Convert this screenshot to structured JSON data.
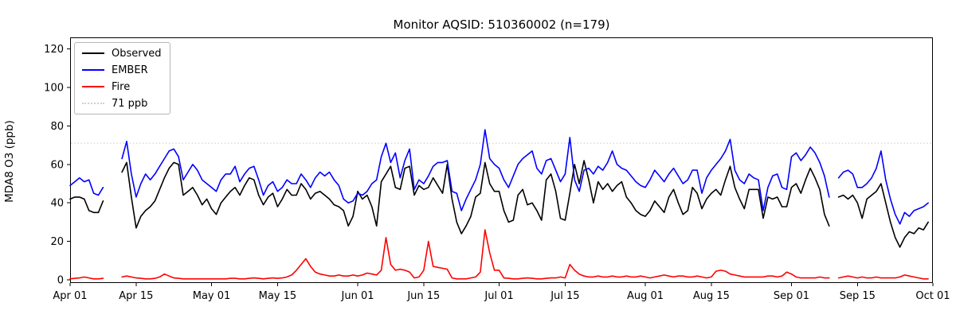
{
  "figure": {
    "title": "Monitor AQSID: 510360002 (n=179)",
    "ylabel": "MDA8 O3 (ppb)"
  },
  "legend": {
    "position": "upper-left",
    "items": [
      {
        "label": "Observed",
        "color": "#000000",
        "style": "solid"
      },
      {
        "label": "EMBER",
        "color": "#0000ff",
        "style": "solid"
      },
      {
        "label": "Fire",
        "color": "#ff0000",
        "style": "solid"
      },
      {
        "label": "71 ppb",
        "color": "#d0d0d0",
        "style": "dotted"
      }
    ]
  },
  "chart_data": {
    "type": "line",
    "title": "Monitor AQSID: 510360002 (n=179)",
    "xlabel": "",
    "ylabel": "MDA8 O3 (ppb)",
    "n_points": 179,
    "grid": false,
    "legend_position": "upper-left",
    "ylim": [
      -2,
      126
    ],
    "yticks": [
      0,
      20,
      40,
      60,
      80,
      100,
      120
    ],
    "xtick_labels": [
      "Apr 01",
      "Apr 15",
      "May 01",
      "May 15",
      "Jun 01",
      "Jun 15",
      "Jul 01",
      "Jul 15",
      "Aug 01",
      "Aug 15",
      "Sep 01",
      "Sep 15",
      "Oct 01"
    ],
    "xtick_day_offsets": [
      0,
      14,
      30,
      44,
      61,
      75,
      91,
      105,
      122,
      136,
      153,
      167,
      183
    ],
    "x_unit": "daily values, day 0 = Apr 01, day 182 = Sep 30",
    "n_days": 183,
    "missing_dates": [
      "Apr 09",
      "Apr 10",
      "Apr 11",
      "Sep 10"
    ],
    "reference_line": {
      "label": "71 ppb",
      "value": 71,
      "color": "#d0d0d0",
      "style": "dotted"
    },
    "series": [
      {
        "name": "Observed",
        "color": "#000000",
        "values": [
          42,
          43,
          43,
          42,
          36,
          35,
          35,
          41,
          null,
          null,
          null,
          56,
          61,
          43,
          27,
          33,
          36,
          38,
          41,
          47,
          53,
          58,
          61,
          60,
          44,
          46,
          48,
          44,
          39,
          42,
          37,
          34,
          40,
          43,
          46,
          48,
          44,
          49,
          53,
          52,
          44,
          39,
          43,
          45,
          38,
          42,
          47,
          44,
          44,
          50,
          47,
          42,
          45,
          46,
          44,
          42,
          39,
          38,
          36,
          28,
          33,
          46,
          42,
          44,
          38,
          28,
          51,
          55,
          59,
          48,
          47,
          58,
          59,
          44,
          49,
          47,
          48,
          53,
          49,
          45,
          60,
          42,
          30,
          24,
          28,
          33,
          43,
          45,
          61,
          50,
          46,
          46,
          36,
          30,
          31,
          44,
          47,
          39,
          40,
          36,
          31,
          52,
          55,
          46,
          32,
          31,
          45,
          60,
          50,
          62,
          52,
          40,
          51,
          47,
          50,
          46,
          49,
          51,
          43,
          40,
          36,
          34,
          33,
          36,
          41,
          38,
          35,
          43,
          47,
          40,
          34,
          36,
          48,
          45,
          37,
          42,
          45,
          47,
          44,
          52,
          59,
          48,
          42,
          37,
          47,
          47,
          47,
          32,
          43,
          42,
          43,
          38,
          38,
          48,
          50,
          45,
          52,
          58,
          53,
          47,
          34,
          28,
          null,
          43,
          44,
          42,
          44,
          40,
          32,
          42,
          44,
          46,
          50,
          40,
          30,
          22,
          17,
          22,
          25,
          24,
          27,
          26,
          30
        ]
      },
      {
        "name": "EMBER",
        "color": "#0000ff",
        "values": [
          49,
          51,
          53,
          51,
          52,
          45,
          44,
          48,
          null,
          null,
          null,
          63,
          72,
          55,
          43,
          50,
          55,
          52,
          55,
          59,
          63,
          67,
          68,
          64,
          52,
          56,
          60,
          57,
          52,
          50,
          48,
          46,
          52,
          55,
          55,
          59,
          51,
          55,
          58,
          59,
          52,
          44,
          49,
          51,
          46,
          48,
          52,
          50,
          50,
          55,
          52,
          48,
          53,
          56,
          54,
          56,
          52,
          49,
          42,
          40,
          41,
          45,
          44,
          46,
          50,
          52,
          64,
          71,
          61,
          66,
          53,
          62,
          68,
          47,
          52,
          50,
          54,
          59,
          61,
          61,
          62,
          46,
          45,
          36,
          42,
          47,
          52,
          60,
          78,
          63,
          60,
          58,
          52,
          48,
          54,
          60,
          63,
          65,
          67,
          58,
          55,
          62,
          63,
          57,
          51,
          55,
          74,
          52,
          46,
          57,
          58,
          55,
          59,
          57,
          61,
          67,
          60,
          58,
          57,
          54,
          51,
          49,
          48,
          52,
          57,
          54,
          51,
          55,
          58,
          54,
          50,
          52,
          57,
          57,
          45,
          53,
          57,
          60,
          63,
          67,
          73,
          57,
          52,
          50,
          55,
          53,
          52,
          36,
          48,
          54,
          55,
          48,
          47,
          64,
          66,
          62,
          65,
          69,
          66,
          61,
          54,
          43,
          null,
          53,
          56,
          57,
          55,
          48,
          48,
          50,
          53,
          58,
          67,
          52,
          42,
          34,
          29,
          35,
          33,
          36,
          37,
          38,
          40
        ]
      },
      {
        "name": "Fire",
        "color": "#ff0000",
        "values": [
          0.5,
          0.8,
          1,
          1.5,
          1,
          0.5,
          0.5,
          0.8,
          null,
          null,
          null,
          1.5,
          2,
          1.5,
          1,
          0.8,
          0.5,
          0.5,
          0.8,
          1.5,
          3,
          2,
          1,
          0.8,
          0.5,
          0.5,
          0.5,
          0.5,
          0.5,
          0.5,
          0.5,
          0.5,
          0.5,
          0.5,
          0.8,
          0.8,
          0.5,
          0.5,
          0.8,
          1,
          0.8,
          0.5,
          0.8,
          1,
          0.8,
          1,
          1.5,
          2.5,
          5,
          8,
          11,
          7,
          4,
          3,
          2.5,
          2,
          2,
          2.5,
          2,
          2,
          2.5,
          2,
          2.5,
          3.5,
          3,
          2.5,
          5,
          22,
          8,
          5,
          5.5,
          5,
          4,
          1,
          1.5,
          5,
          20,
          7,
          6.5,
          6,
          5.5,
          1,
          0.5,
          0.5,
          0.5,
          1,
          1.5,
          4,
          26,
          14,
          5,
          5,
          1,
          0.8,
          0.5,
          0.5,
          0.8,
          1,
          0.8,
          0.5,
          0.5,
          0.8,
          1,
          1,
          1.5,
          1,
          8,
          5,
          3,
          2,
          1.5,
          1.5,
          2,
          1.5,
          1.5,
          2,
          1.5,
          1.5,
          2,
          1.5,
          1.5,
          2,
          1.5,
          1,
          1.5,
          2,
          2.5,
          2,
          1.5,
          2,
          2,
          1.5,
          1.5,
          2,
          1.5,
          1,
          1.5,
          4.5,
          5,
          4.5,
          3,
          2.5,
          2,
          1.5,
          1.5,
          1.5,
          1.5,
          1.5,
          2,
          2,
          1.5,
          2,
          4,
          3,
          1.5,
          1,
          1,
          1,
          1,
          1.5,
          1,
          1,
          null,
          1,
          1.5,
          2,
          1.5,
          1,
          1.5,
          1,
          1,
          1.5,
          1,
          1,
          1,
          1,
          1.5,
          2.5,
          2,
          1.5,
          1,
          0.5,
          0.5
        ]
      }
    ]
  }
}
